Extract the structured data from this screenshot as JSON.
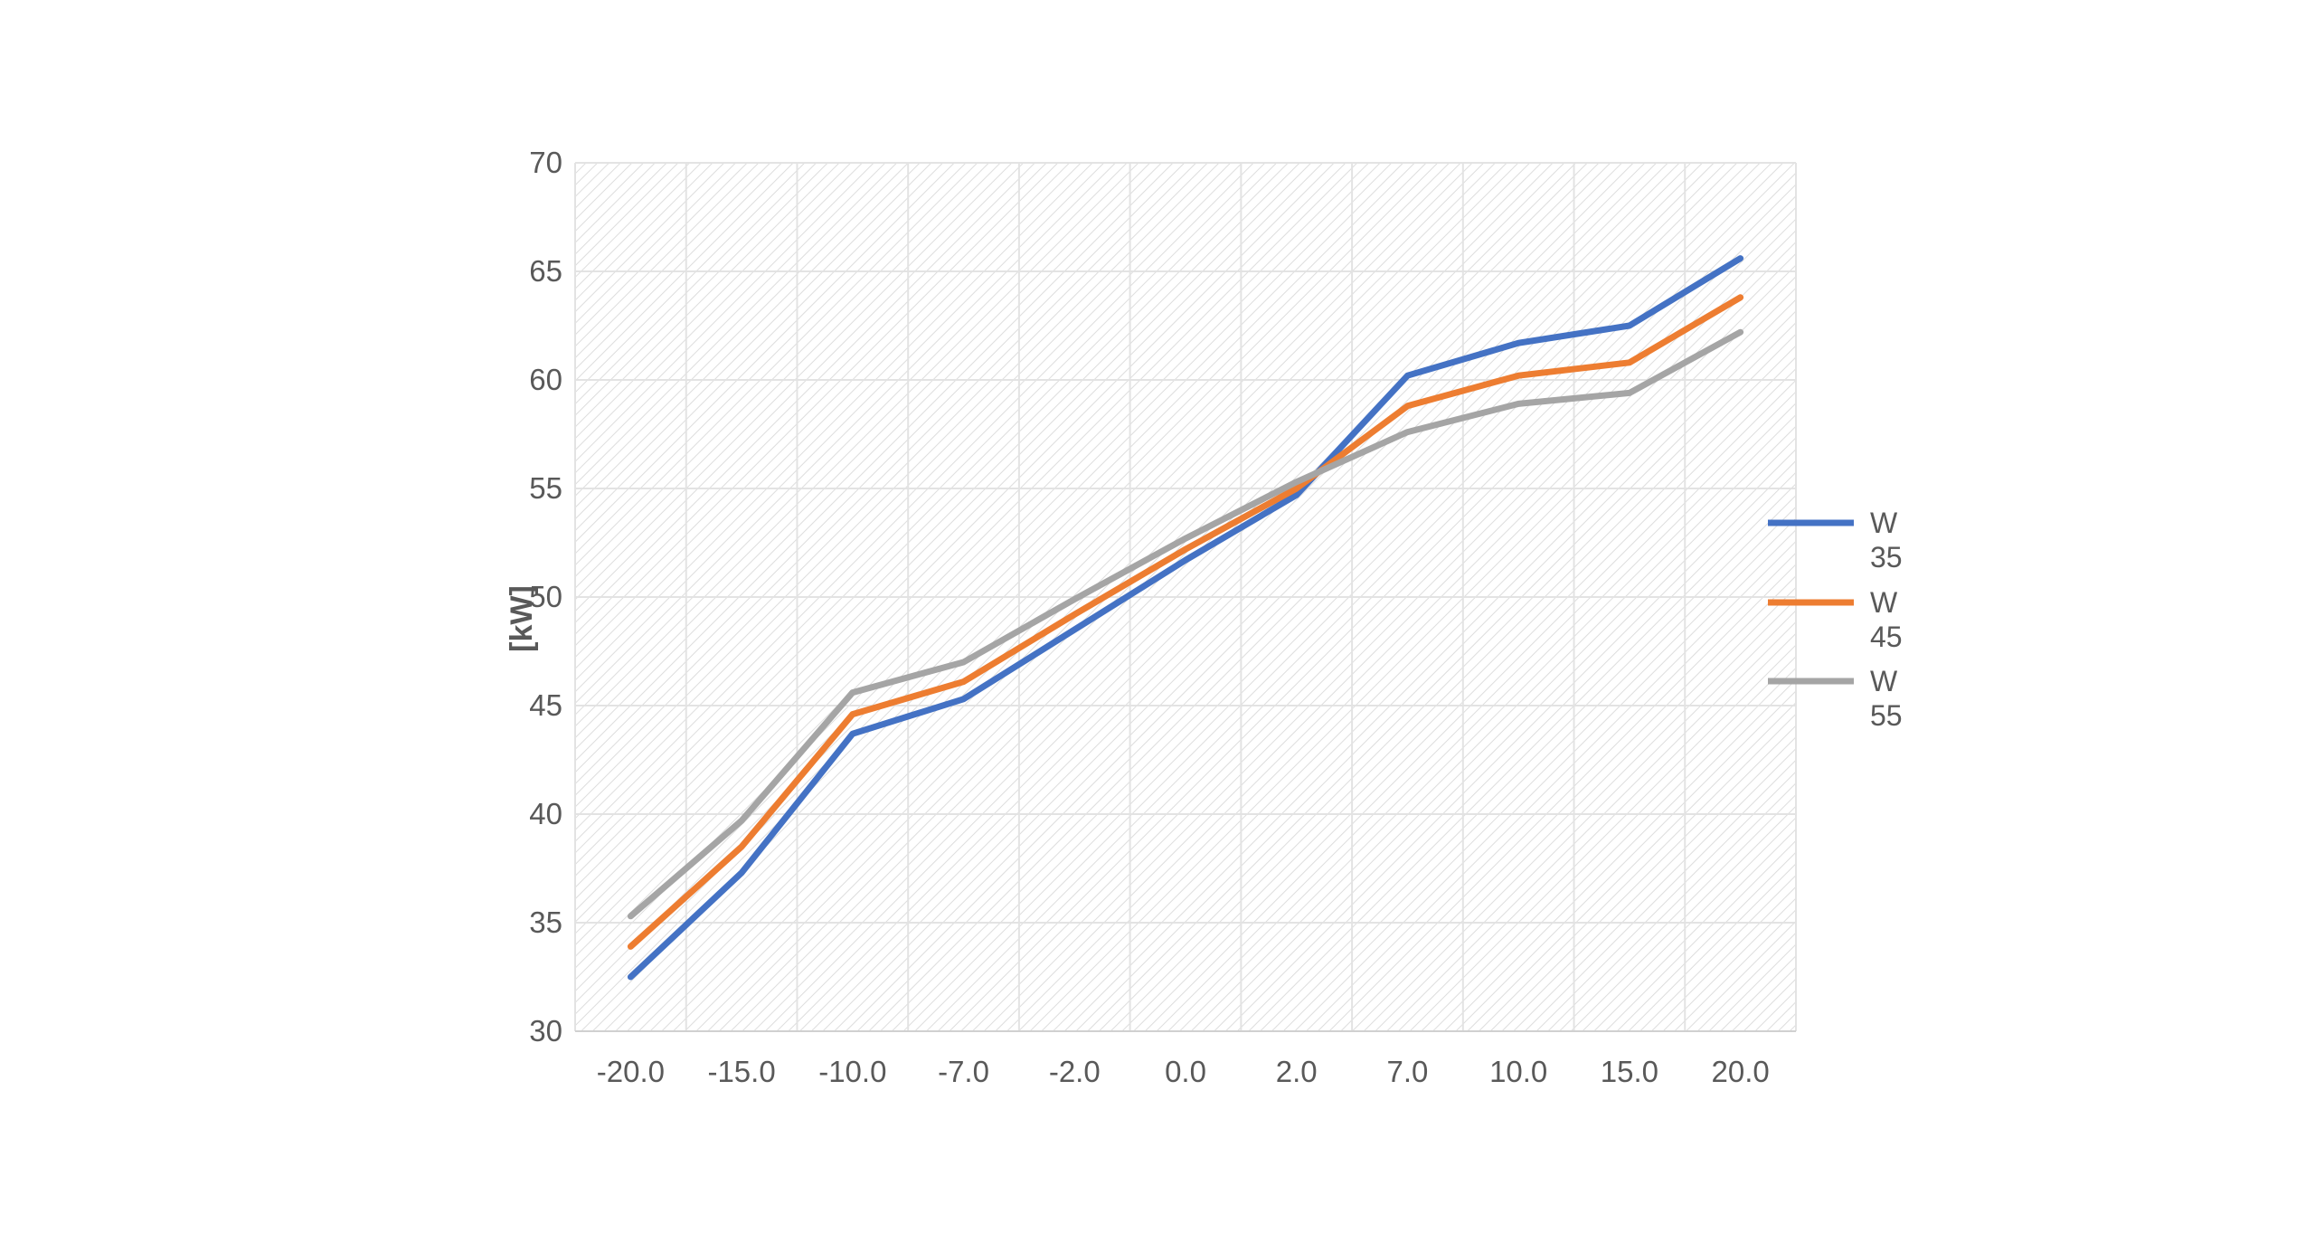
{
  "chart_data": {
    "type": "line",
    "title": "",
    "xlabel": "",
    "ylabel": "[kW]",
    "categories": [
      "-20.0",
      "-15.0",
      "-10.0",
      "-7.0",
      "-2.0",
      "0.0",
      "2.0",
      "7.0",
      "10.0",
      "15.0",
      "20.0"
    ],
    "ylim": [
      30,
      70
    ],
    "yticks": [
      30,
      35,
      40,
      45,
      50,
      55,
      60,
      65,
      70
    ],
    "grid": true,
    "legend_position": "right",
    "series": [
      {
        "name_line1": "W",
        "name_line2": "35",
        "color": "#4472C4",
        "values": [
          32.5,
          37.3,
          43.7,
          45.3,
          48.5,
          51.7,
          54.7,
          60.2,
          61.7,
          62.5,
          65.6
        ]
      },
      {
        "name_line1": "W",
        "name_line2": "45",
        "color": "#ED7D31",
        "values": [
          33.9,
          38.5,
          44.6,
          46.1,
          49.2,
          52.2,
          55.0,
          58.8,
          60.2,
          60.8,
          63.8
        ]
      },
      {
        "name_line1": "W",
        "name_line2": "55",
        "color": "#A5A5A5",
        "values": [
          35.3,
          39.7,
          45.6,
          47.0,
          49.9,
          52.7,
          55.3,
          57.6,
          58.9,
          59.4,
          62.2
        ]
      }
    ]
  }
}
